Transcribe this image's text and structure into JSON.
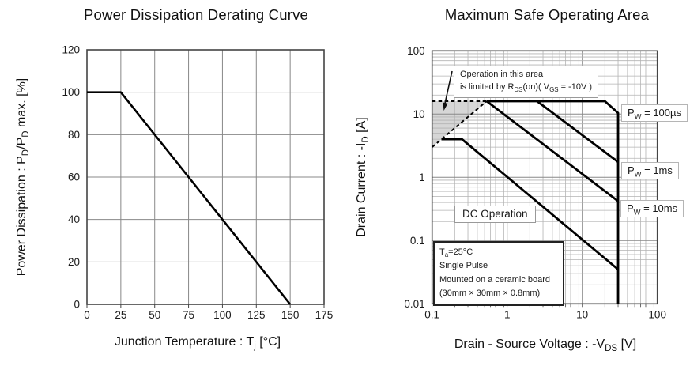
{
  "chart_data": [
    {
      "type": "line",
      "title": "Power Dissipation Derating Curve",
      "xlabel": "Junction Temperature : Tj [°C]",
      "ylabel": "Power Dissipation : PD/PD max. [%]",
      "xlim": [
        0,
        175
      ],
      "ylim": [
        0,
        120
      ],
      "xticks": [
        0,
        25,
        50,
        75,
        100,
        125,
        150,
        175
      ],
      "yticks": [
        0,
        20,
        40,
        60,
        80,
        100,
        120
      ],
      "grid": true,
      "legend": false,
      "series": [
        {
          "name": "derating-curve",
          "points": [
            [
              0,
              100
            ],
            [
              25,
              100
            ],
            [
              150,
              0
            ]
          ]
        }
      ]
    },
    {
      "type": "line",
      "title": "Maximum Safe Operating Area",
      "xlabel": "Drain - Source Voltage : -VDS [V]",
      "ylabel": "Drain Current : -ID [A]",
      "xscale": "log",
      "yscale": "log",
      "xlim": [
        0.1,
        100
      ],
      "ylim": [
        0.01,
        100
      ],
      "xticks": [
        0.1,
        1,
        10,
        100
      ],
      "yticks": [
        0.01,
        0.1,
        1,
        10,
        100
      ],
      "grid": true,
      "legend": false,
      "series": [
        {
          "name": "Pw = 100us",
          "points": [
            [
              0.533,
              16
            ],
            [
              20,
              16
            ],
            [
              30,
              10.4
            ],
            [
              30,
              0.01
            ]
          ]
        },
        {
          "name": "Pw = 1ms",
          "points": [
            [
              2.5,
              16
            ],
            [
              30,
              1.75
            ]
          ]
        },
        {
          "name": "Pw = 10ms",
          "points": [
            [
              0.533,
              16
            ],
            [
              30,
              0.42
            ]
          ]
        },
        {
          "name": "DC Operation",
          "points": [
            [
              0.133,
              4
            ],
            [
              0.25,
              4
            ],
            [
              30,
              0.035
            ]
          ]
        }
      ],
      "dashed_lines": [
        {
          "name": "pulsed-current-limit",
          "points": [
            [
              0.1,
              16
            ],
            [
              0.533,
              16
            ]
          ]
        },
        {
          "name": "rds-on-limit",
          "points": [
            [
              0.1,
              3
            ],
            [
              0.533,
              16
            ]
          ]
        }
      ],
      "shaded_region": [
        [
          0.1,
          3
        ],
        [
          0.1,
          16
        ],
        [
          0.533,
          16
        ]
      ],
      "annotations": {
        "operation_note": "Operation in this area is limited by RDS(on)( VGS = -10V )",
        "dc_label": "DC Operation",
        "curve_labels": [
          "PW = 100µs",
          "PW = 1ms",
          "PW = 10ms"
        ],
        "conditions": [
          "Ta=25°C",
          "Single Pulse",
          "Mounted on a ceramic board",
          "(30mm × 30mm × 0.8mm)"
        ]
      }
    }
  ],
  "display": {
    "left": {
      "xlabel": "Junction Temperature : T~j~ [°C]",
      "ylabel": "Power Dissipation : P~D~/P~D~ max. [%]"
    },
    "right": {
      "xlabel": "Drain - Source Voltage : -V~DS~ [V]",
      "ylabel": "Drain Current : -I~D~ [A]",
      "annotation_line1": "Operation in this area",
      "annotation_line2": "is limited by R~DS~(on)( V~GS~ = -10V )",
      "dc_label": "DC Operation",
      "pw_labels": [
        "P~W~ = 100µs",
        "P~W~ = 1ms",
        "P~W~ = 10ms"
      ],
      "conditions": [
        "T~a~=25°C",
        "Single Pulse",
        "Mounted on a ceramic board",
        "(30mm × 30mm × 0.8mm)"
      ]
    }
  },
  "colors": {
    "curve": "#000000",
    "grid_major": "#888888",
    "grid_minor": "#b3b3b3",
    "border": "#444444",
    "shade": "#d6d6d6",
    "text": "#1a1a1a"
  }
}
